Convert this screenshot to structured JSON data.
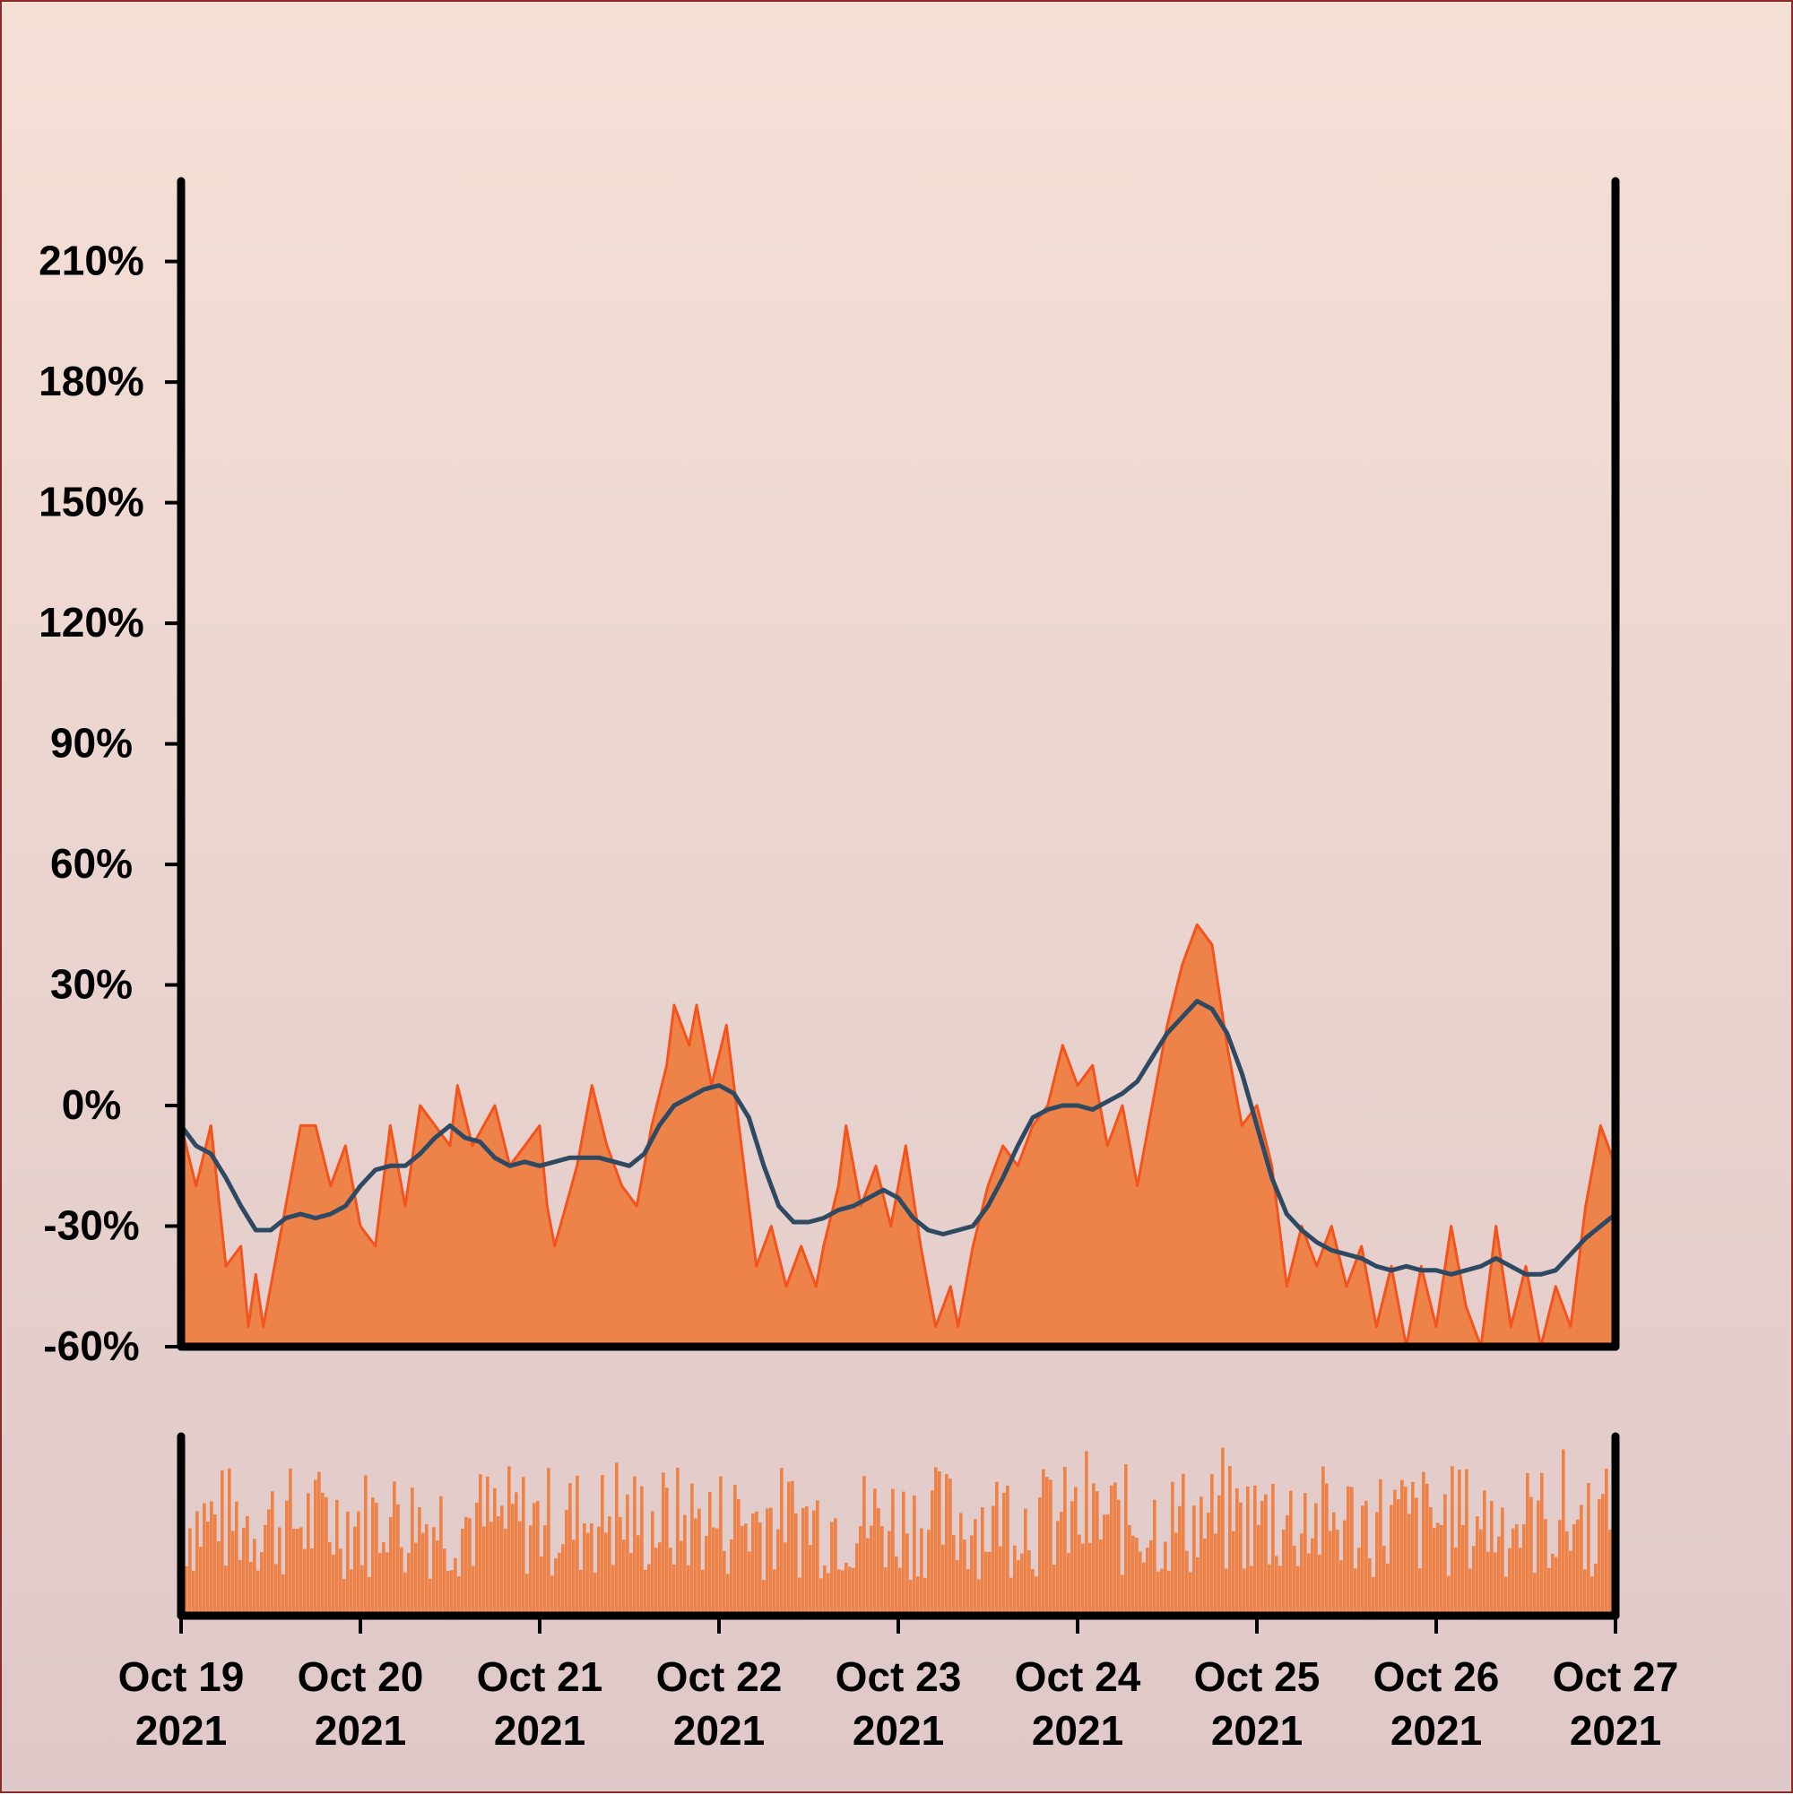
{
  "colors": {
    "area_fill": "#ee834a",
    "area_line": "#f4541c",
    "ma_line": "#2e4a62",
    "volume_fill": "#ee834a",
    "axis": "#000000",
    "background_top": "#f5e0d6",
    "background_bottom": "#dfc8c8",
    "border": "#8a2a2a"
  },
  "chart_data": {
    "type": "area",
    "title": "",
    "xlabel": "",
    "ylabel": "",
    "grid": false,
    "legend": "none",
    "x_range": [
      "2021-10-19",
      "2021-10-27"
    ],
    "x_ticks": [
      {
        "date": "2021-10-19",
        "line1": "Oct 19",
        "line2": "2021"
      },
      {
        "date": "2021-10-20",
        "line1": "Oct 20",
        "line2": "2021"
      },
      {
        "date": "2021-10-21",
        "line1": "Oct 21",
        "line2": "2021"
      },
      {
        "date": "2021-10-22",
        "line1": "Oct 22",
        "line2": "2021"
      },
      {
        "date": "2021-10-23",
        "line1": "Oct 23",
        "line2": "2021"
      },
      {
        "date": "2021-10-24",
        "line1": "Oct 24",
        "line2": "2021"
      },
      {
        "date": "2021-10-25",
        "line1": "Oct 25",
        "line2": "2021"
      },
      {
        "date": "2021-10-26",
        "line1": "Oct 26",
        "line2": "2021"
      },
      {
        "date": "2021-10-27",
        "line1": "Oct 27",
        "line2": "2021"
      }
    ],
    "ylim": [
      -60,
      230
    ],
    "y_ticks": [
      {
        "value": -60,
        "label": "-60%"
      },
      {
        "value": -30,
        "label": "-30%"
      },
      {
        "value": 0,
        "label": "0%"
      },
      {
        "value": 30,
        "label": "30%"
      },
      {
        "value": 60,
        "label": "60%"
      },
      {
        "value": 90,
        "label": "90%"
      },
      {
        "value": 120,
        "label": "120%"
      },
      {
        "value": 150,
        "label": "150%"
      },
      {
        "value": 180,
        "label": "180%"
      },
      {
        "value": 210,
        "label": "210%"
      }
    ],
    "series": [
      {
        "kind": "area",
        "points": [
          [
            "2021-10-19 00:00",
            -5
          ],
          [
            "2021-10-19 02:00",
            -20
          ],
          [
            "2021-10-19 04:00",
            -5
          ],
          [
            "2021-10-19 06:00",
            -40
          ],
          [
            "2021-10-19 08:00",
            -35
          ],
          [
            "2021-10-19 09:00",
            -55
          ],
          [
            "2021-10-19 10:00",
            -42
          ],
          [
            "2021-10-19 11:00",
            -55
          ],
          [
            "2021-10-19 12:00",
            -45
          ],
          [
            "2021-10-19 14:00",
            -25
          ],
          [
            "2021-10-19 16:00",
            -5
          ],
          [
            "2021-10-19 18:00",
            -5
          ],
          [
            "2021-10-19 20:00",
            -20
          ],
          [
            "2021-10-19 22:00",
            -10
          ],
          [
            "2021-10-20 00:00",
            -30
          ],
          [
            "2021-10-20 02:00",
            -35
          ],
          [
            "2021-10-20 04:00",
            -5
          ],
          [
            "2021-10-20 06:00",
            -25
          ],
          [
            "2021-10-20 08:00",
            0
          ],
          [
            "2021-10-20 10:00",
            -5
          ],
          [
            "2021-10-20 12:00",
            -10
          ],
          [
            "2021-10-20 13:00",
            5
          ],
          [
            "2021-10-20 15:00",
            -10
          ],
          [
            "2021-10-20 18:00",
            0
          ],
          [
            "2021-10-20 20:00",
            -15
          ],
          [
            "2021-10-21 00:00",
            -5
          ],
          [
            "2021-10-21 01:00",
            -25
          ],
          [
            "2021-10-21 02:00",
            -35
          ],
          [
            "2021-10-21 05:00",
            -15
          ],
          [
            "2021-10-21 07:00",
            5
          ],
          [
            "2021-10-21 09:00",
            -10
          ],
          [
            "2021-10-21 11:00",
            -20
          ],
          [
            "2021-10-21 13:00",
            -25
          ],
          [
            "2021-10-21 15:00",
            -5
          ],
          [
            "2021-10-21 17:00",
            10
          ],
          [
            "2021-10-21 18:00",
            25
          ],
          [
            "2021-10-21 20:00",
            15
          ],
          [
            "2021-10-21 21:00",
            25
          ],
          [
            "2021-10-21 23:00",
            5
          ],
          [
            "2021-10-22 01:00",
            20
          ],
          [
            "2021-10-22 03:00",
            -10
          ],
          [
            "2021-10-22 05:00",
            -40
          ],
          [
            "2021-10-22 07:00",
            -30
          ],
          [
            "2021-10-22 09:00",
            -45
          ],
          [
            "2021-10-22 11:00",
            -35
          ],
          [
            "2021-10-22 13:00",
            -45
          ],
          [
            "2021-10-22 14:00",
            -35
          ],
          [
            "2021-10-22 16:00",
            -20
          ],
          [
            "2021-10-22 17:00",
            -5
          ],
          [
            "2021-10-22 19:00",
            -25
          ],
          [
            "2021-10-22 21:00",
            -15
          ],
          [
            "2021-10-22 23:00",
            -30
          ],
          [
            "2021-10-23 01:00",
            -10
          ],
          [
            "2021-10-23 03:00",
            -35
          ],
          [
            "2021-10-23 05:00",
            -55
          ],
          [
            "2021-10-23 07:00",
            -45
          ],
          [
            "2021-10-23 08:00",
            -55
          ],
          [
            "2021-10-23 10:00",
            -35
          ],
          [
            "2021-10-23 12:00",
            -20
          ],
          [
            "2021-10-23 14:00",
            -10
          ],
          [
            "2021-10-23 16:00",
            -15
          ],
          [
            "2021-10-23 18:00",
            -5
          ],
          [
            "2021-10-23 20:00",
            0
          ],
          [
            "2021-10-23 22:00",
            15
          ],
          [
            "2021-10-24 00:00",
            5
          ],
          [
            "2021-10-24 02:00",
            10
          ],
          [
            "2021-10-24 04:00",
            -10
          ],
          [
            "2021-10-24 06:00",
            0
          ],
          [
            "2021-10-24 08:00",
            -20
          ],
          [
            "2021-10-24 10:00",
            0
          ],
          [
            "2021-10-24 12:00",
            20
          ],
          [
            "2021-10-24 14:00",
            35
          ],
          [
            "2021-10-24 16:00",
            45
          ],
          [
            "2021-10-24 18:00",
            40
          ],
          [
            "2021-10-24 20:00",
            15
          ],
          [
            "2021-10-24 22:00",
            -5
          ],
          [
            "2021-10-25 00:00",
            0
          ],
          [
            "2021-10-25 02:00",
            -15
          ],
          [
            "2021-10-25 04:00",
            -45
          ],
          [
            "2021-10-25 06:00",
            -30
          ],
          [
            "2021-10-25 08:00",
            -40
          ],
          [
            "2021-10-25 10:00",
            -30
          ],
          [
            "2021-10-25 12:00",
            -45
          ],
          [
            "2021-10-25 14:00",
            -35
          ],
          [
            "2021-10-25 16:00",
            -55
          ],
          [
            "2021-10-25 18:00",
            -40
          ],
          [
            "2021-10-25 20:00",
            -60
          ],
          [
            "2021-10-25 22:00",
            -40
          ],
          [
            "2021-10-26 00:00",
            -55
          ],
          [
            "2021-10-26 02:00",
            -30
          ],
          [
            "2021-10-26 04:00",
            -50
          ],
          [
            "2021-10-26 06:00",
            -60
          ],
          [
            "2021-10-26 08:00",
            -30
          ],
          [
            "2021-10-26 10:00",
            -55
          ],
          [
            "2021-10-26 12:00",
            -40
          ],
          [
            "2021-10-26 14:00",
            -60
          ],
          [
            "2021-10-26 16:00",
            -45
          ],
          [
            "2021-10-26 18:00",
            -55
          ],
          [
            "2021-10-26 20:00",
            -25
          ],
          [
            "2021-10-26 22:00",
            -5
          ],
          [
            "2021-10-27 00:00",
            -15
          ],
          [
            "2021-10-27 02:00",
            -5
          ],
          [
            "2021-10-27 04:00",
            -30
          ],
          [
            "2021-10-27 06:00",
            -10
          ],
          [
            "2021-10-27 08:00",
            0
          ],
          [
            "2021-10-27 10:00",
            -20
          ],
          [
            "2021-10-27 12:00",
            0
          ],
          [
            "2021-10-27 14:00",
            -10
          ],
          [
            "2021-10-27 16:00",
            -30
          ],
          [
            "2021-10-27 18:00",
            -50
          ],
          [
            "2021-10-27 20:00",
            -25
          ],
          [
            "2021-10-27 22:00",
            -5
          ],
          [
            "2021-10-28 00:00",
            10
          ],
          [
            "2021-10-28 02:00",
            -10
          ],
          [
            "2021-10-28 04:00",
            5
          ],
          [
            "2021-10-28 06:00",
            0
          ]
        ]
      },
      {
        "kind": "line",
        "points": [
          [
            "2021-10-19 00:00",
            -5
          ],
          [
            "2021-10-19 02:00",
            -10
          ],
          [
            "2021-10-19 04:00",
            -12
          ],
          [
            "2021-10-19 06:00",
            -18
          ],
          [
            "2021-10-19 08:00",
            -25
          ],
          [
            "2021-10-19 10:00",
            -31
          ],
          [
            "2021-10-19 12:00",
            -31
          ],
          [
            "2021-10-19 14:00",
            -28
          ],
          [
            "2021-10-19 16:00",
            -27
          ],
          [
            "2021-10-19 18:00",
            -28
          ],
          [
            "2021-10-19 20:00",
            -27
          ],
          [
            "2021-10-19 22:00",
            -25
          ],
          [
            "2021-10-20 00:00",
            -20
          ],
          [
            "2021-10-20 02:00",
            -16
          ],
          [
            "2021-10-20 04:00",
            -15
          ],
          [
            "2021-10-20 06:00",
            -15
          ],
          [
            "2021-10-20 08:00",
            -12
          ],
          [
            "2021-10-20 10:00",
            -8
          ],
          [
            "2021-10-20 12:00",
            -5
          ],
          [
            "2021-10-20 14:00",
            -8
          ],
          [
            "2021-10-20 16:00",
            -9
          ],
          [
            "2021-10-20 18:00",
            -13
          ],
          [
            "2021-10-20 20:00",
            -15
          ],
          [
            "2021-10-20 22:00",
            -14
          ],
          [
            "2021-10-21 00:00",
            -15
          ],
          [
            "2021-10-21 02:00",
            -14
          ],
          [
            "2021-10-21 04:00",
            -13
          ],
          [
            "2021-10-21 06:00",
            -13
          ],
          [
            "2021-10-21 08:00",
            -13
          ],
          [
            "2021-10-21 10:00",
            -14
          ],
          [
            "2021-10-21 12:00",
            -15
          ],
          [
            "2021-10-21 14:00",
            -12
          ],
          [
            "2021-10-21 16:00",
            -5
          ],
          [
            "2021-10-21 18:00",
            0
          ],
          [
            "2021-10-21 20:00",
            2
          ],
          [
            "2021-10-21 22:00",
            4
          ],
          [
            "2021-10-22 00:00",
            5
          ],
          [
            "2021-10-22 02:00",
            3
          ],
          [
            "2021-10-22 04:00",
            -3
          ],
          [
            "2021-10-22 06:00",
            -15
          ],
          [
            "2021-10-22 08:00",
            -25
          ],
          [
            "2021-10-22 10:00",
            -29
          ],
          [
            "2021-10-22 12:00",
            -29
          ],
          [
            "2021-10-22 14:00",
            -28
          ],
          [
            "2021-10-22 16:00",
            -26
          ],
          [
            "2021-10-22 18:00",
            -25
          ],
          [
            "2021-10-22 20:00",
            -23
          ],
          [
            "2021-10-22 22:00",
            -21
          ],
          [
            "2021-10-23 00:00",
            -23
          ],
          [
            "2021-10-23 02:00",
            -28
          ],
          [
            "2021-10-23 04:00",
            -31
          ],
          [
            "2021-10-23 06:00",
            -32
          ],
          [
            "2021-10-23 08:00",
            -31
          ],
          [
            "2021-10-23 10:00",
            -30
          ],
          [
            "2021-10-23 12:00",
            -25
          ],
          [
            "2021-10-23 14:00",
            -18
          ],
          [
            "2021-10-23 16:00",
            -10
          ],
          [
            "2021-10-23 18:00",
            -3
          ],
          [
            "2021-10-23 20:00",
            -1
          ],
          [
            "2021-10-23 22:00",
            0
          ],
          [
            "2021-10-24 00:00",
            0
          ],
          [
            "2021-10-24 02:00",
            -1
          ],
          [
            "2021-10-24 04:00",
            1
          ],
          [
            "2021-10-24 06:00",
            3
          ],
          [
            "2021-10-24 08:00",
            6
          ],
          [
            "2021-10-24 10:00",
            12
          ],
          [
            "2021-10-24 12:00",
            18
          ],
          [
            "2021-10-24 14:00",
            22
          ],
          [
            "2021-10-24 16:00",
            26
          ],
          [
            "2021-10-24 18:00",
            24
          ],
          [
            "2021-10-24 20:00",
            18
          ],
          [
            "2021-10-24 22:00",
            8
          ],
          [
            "2021-10-25 00:00",
            -5
          ],
          [
            "2021-10-25 02:00",
            -18
          ],
          [
            "2021-10-25 04:00",
            -27
          ],
          [
            "2021-10-25 06:00",
            -31
          ],
          [
            "2021-10-25 08:00",
            -34
          ],
          [
            "2021-10-25 10:00",
            -36
          ],
          [
            "2021-10-25 12:00",
            -37
          ],
          [
            "2021-10-25 14:00",
            -38
          ],
          [
            "2021-10-25 16:00",
            -40
          ],
          [
            "2021-10-25 18:00",
            -41
          ],
          [
            "2021-10-25 20:00",
            -40
          ],
          [
            "2021-10-25 22:00",
            -41
          ],
          [
            "2021-10-26 00:00",
            -41
          ],
          [
            "2021-10-26 02:00",
            -42
          ],
          [
            "2021-10-26 04:00",
            -41
          ],
          [
            "2021-10-26 06:00",
            -40
          ],
          [
            "2021-10-26 08:00",
            -38
          ],
          [
            "2021-10-26 10:00",
            -40
          ],
          [
            "2021-10-26 12:00",
            -42
          ],
          [
            "2021-10-26 14:00",
            -42
          ],
          [
            "2021-10-26 16:00",
            -41
          ],
          [
            "2021-10-26 18:00",
            -37
          ],
          [
            "2021-10-26 20:00",
            -33
          ],
          [
            "2021-10-26 22:00",
            -30
          ],
          [
            "2021-10-27 00:00",
            -27
          ],
          [
            "2021-10-27 02:00",
            -22
          ],
          [
            "2021-10-27 04:00",
            -18
          ],
          [
            "2021-10-27 06:00",
            -15
          ],
          [
            "2021-10-27 08:00",
            -14
          ],
          [
            "2021-10-27 10:00",
            -16
          ],
          [
            "2021-10-27 12:00",
            -19
          ],
          [
            "2021-10-27 14:00",
            -21
          ],
          [
            "2021-10-27 16:00",
            -21
          ],
          [
            "2021-10-27 18:00",
            -20
          ],
          [
            "2021-10-27 20:00",
            -19
          ],
          [
            "2021-10-27 22:00",
            -17
          ],
          [
            "2021-10-28 00:00",
            -15
          ],
          [
            "2021-10-28 02:00",
            -11
          ],
          [
            "2021-10-28 04:00",
            -7
          ],
          [
            "2021-10-28 06:00",
            -6
          ]
        ]
      }
    ]
  }
}
